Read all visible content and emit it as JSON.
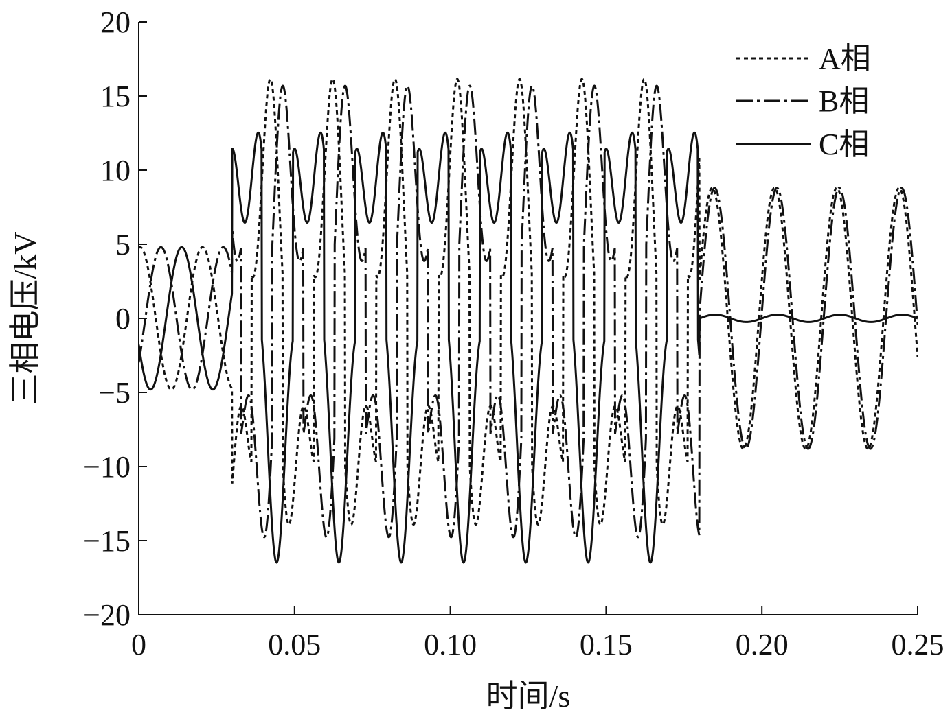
{
  "chart_data": {
    "type": "line",
    "title": "",
    "xlabel": "时间/s",
    "ylabel": "三相电压/kV",
    "xlim": [
      0,
      0.25
    ],
    "ylim": [
      -20,
      20
    ],
    "x_ticks": [
      0,
      0.05,
      0.1,
      0.15,
      0.2,
      0.25
    ],
    "x_tick_labels": [
      "0",
      "0.05",
      "0.10",
      "0.15",
      "0.20",
      "0.25"
    ],
    "y_ticks": [
      -20,
      -15,
      -10,
      -5,
      0,
      5,
      10,
      15,
      20
    ],
    "y_tick_labels": [
      "−20",
      "−15",
      "−10",
      "−5",
      "0",
      "5",
      "10",
      "15",
      "20"
    ],
    "grid": false,
    "legend_position": "top-right",
    "series": [
      {
        "name": "A相",
        "dash": "dotted",
        "color": "#111111"
      },
      {
        "name": "B相",
        "dash": "dashdot",
        "color": "#111111"
      },
      {
        "name": "C相",
        "dash": "solid",
        "color": "#111111"
      }
    ],
    "phases": {
      "stage1": {
        "t_range": [
          0,
          0.03
        ],
        "amplitude": 4.8,
        "offset_kV": [
          0,
          0,
          0
        ]
      },
      "stage2": {
        "t_range": [
          0.03,
          0.18
        ],
        "amplitude_kV": 16.5,
        "offsets_kV": [
          -11.5,
          11.5
        ]
      },
      "stage3": {
        "t_range": [
          0.18,
          0.25
        ],
        "A_amplitude": 8.8,
        "B_amplitude": 8.8,
        "C_amplitude": 0.25
      }
    }
  }
}
